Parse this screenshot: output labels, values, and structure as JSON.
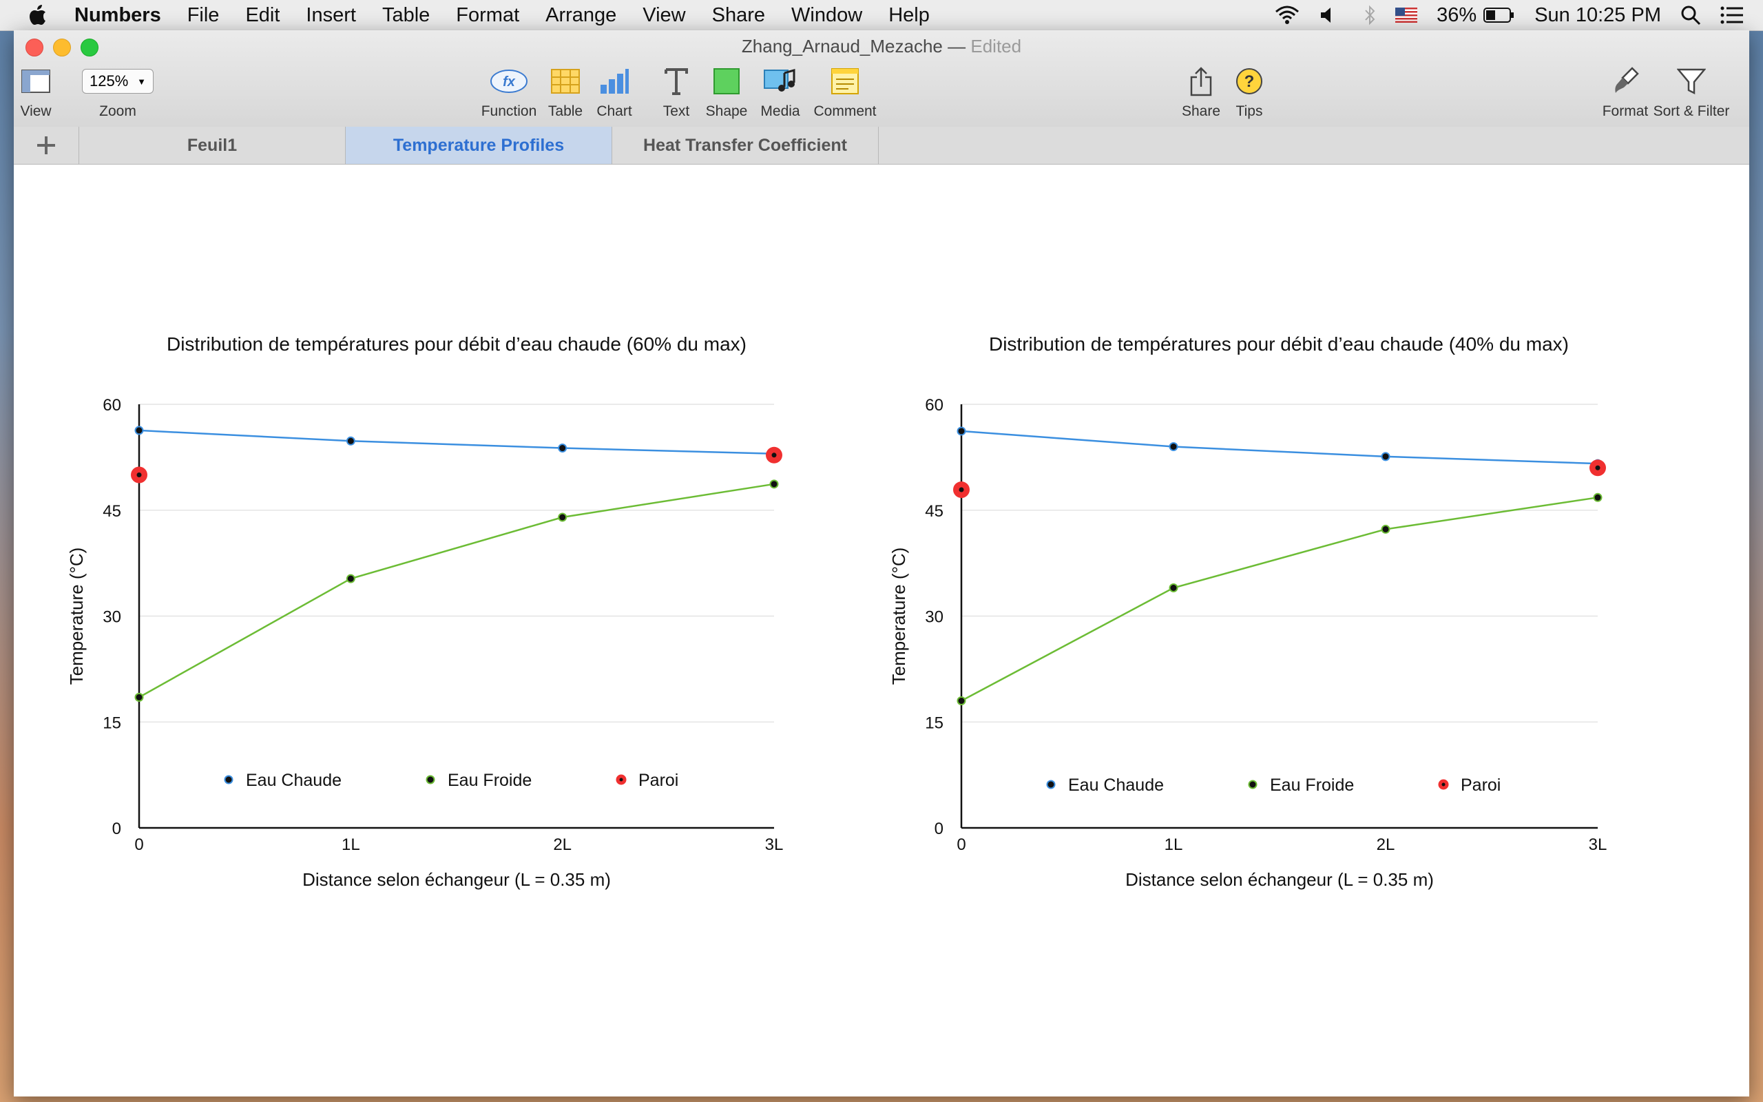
{
  "menubar": {
    "app": "Numbers",
    "menus": [
      "File",
      "Edit",
      "Insert",
      "Table",
      "Format",
      "Arrange",
      "View",
      "Share",
      "Window",
      "Help"
    ],
    "battery": "36%",
    "clock": "Sun 10:25 PM"
  },
  "window": {
    "title": "Zhang_Arnaud_Mezache",
    "separator": "—",
    "status": "Edited"
  },
  "toolbar": {
    "view": "View",
    "zoom_value": "125%",
    "zoom": "Zoom",
    "function": "Function",
    "table": "Table",
    "chart": "Chart",
    "text": "Text",
    "shape": "Shape",
    "media": "Media",
    "comment": "Comment",
    "share": "Share",
    "tips": "Tips",
    "format": "Format",
    "sort_filter": "Sort & Filter"
  },
  "tabs": [
    "Feuil1",
    "Temperature Profiles",
    "Heat Transfer Coefficient"
  ],
  "active_tab": "Temperature Profiles",
  "colors": {
    "hot": "#3b8fe0",
    "cold": "#6cbc35",
    "wall": "#f03030",
    "active_tab_text": "#2d6fd1"
  },
  "chart_data": [
    {
      "type": "line",
      "title": "Distribution de températures pour débit d’eau chaude (60% du max)",
      "xlabel": "Distance selon échangeur (L = 0.35 m)",
      "ylabel": "Temperature (°C)",
      "categories": [
        "0",
        "1L",
        "2L",
        "3L"
      ],
      "ylim": [
        0,
        60
      ],
      "yticks": [
        "0",
        "15",
        "30",
        "45",
        "60"
      ],
      "grid": true,
      "legend_position": "bottom-inside",
      "series": [
        {
          "name": "Eau Chaude",
          "color": "#3b8fe0",
          "marker": "small",
          "values": [
            56.3,
            54.8,
            53.8,
            53.0
          ]
        },
        {
          "name": "Eau Froide",
          "color": "#6cbc35",
          "marker": "small",
          "values": [
            18.5,
            35.3,
            44.0,
            48.7
          ]
        },
        {
          "name": "Paroi",
          "color": "#f03030",
          "marker": "large",
          "values": [
            50.0,
            null,
            null,
            52.8
          ]
        }
      ]
    },
    {
      "type": "line",
      "title": "Distribution de températures pour débit d’eau chaude (40% du max)",
      "xlabel": "Distance selon échangeur (L = 0.35 m)",
      "ylabel": "Temperature (°C)",
      "categories": [
        "0",
        "1L",
        "2L",
        "3L"
      ],
      "ylim": [
        0,
        60
      ],
      "yticks": [
        "0",
        "15",
        "30",
        "45",
        "60"
      ],
      "grid": true,
      "legend_position": "bottom-inside",
      "series": [
        {
          "name": "Eau Chaude",
          "color": "#3b8fe0",
          "marker": "small",
          "values": [
            56.2,
            54.0,
            52.6,
            51.6
          ]
        },
        {
          "name": "Eau Froide",
          "color": "#6cbc35",
          "marker": "small",
          "values": [
            18.0,
            34.0,
            42.3,
            46.8
          ]
        },
        {
          "name": "Paroi",
          "color": "#f03030",
          "marker": "large",
          "values": [
            47.9,
            null,
            null,
            51.0
          ]
        }
      ]
    }
  ]
}
